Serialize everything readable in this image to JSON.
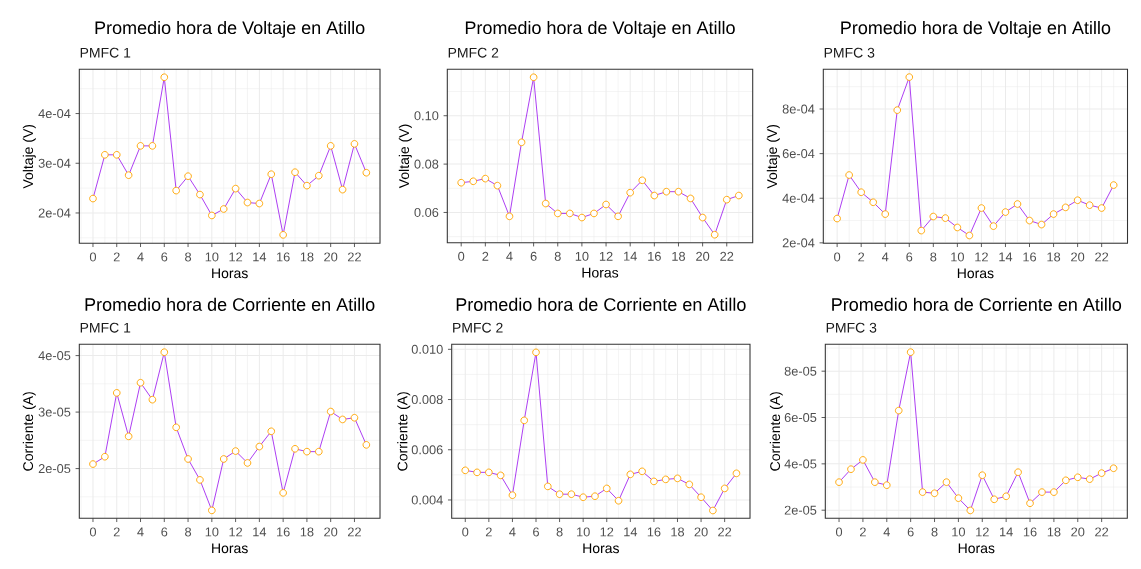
{
  "chart_data": [
    {
      "type": "line",
      "title": "Promedio hora de Voltaje en Atillo",
      "subtitle": "PMFC 1",
      "xlabel": "Horas",
      "ylabel": "Voltaje (V)",
      "x": [
        0,
        1,
        2,
        3,
        4,
        5,
        6,
        7,
        8,
        9,
        10,
        11,
        12,
        13,
        14,
        15,
        16,
        17,
        18,
        19,
        20,
        21,
        22,
        23
      ],
      "series": [
        {
          "color": "#a020f0",
          "colors": [
            "#ffa500",
            "#ffa500",
            "#ffa500",
            "#ffa500",
            "#ffa500",
            "#ffa500",
            "#ffa500",
            "#ffa500",
            "#ffa500",
            "#ffa500",
            "#ffa500",
            "#ffa500",
            "#ffa500",
            "#ffa500",
            "#ffa500",
            "#ffa500",
            "#ffa500",
            "#ffa500",
            "#ffa500",
            "#ffa500",
            "#ffa500",
            "#ffa500",
            "#ffa500",
            "#ffa500"
          ],
          "values": [
            0.000229,
            0.000317,
            0.000317,
            0.000276,
            0.000335,
            0.000335,
            0.000473,
            0.000245,
            0.000274,
            0.000237,
            0.000195,
            0.000208,
            0.000249,
            0.000221,
            0.000219,
            0.000278,
            0.000156,
            0.000282,
            0.000255,
            0.000275,
            0.000335,
            0.000247,
            0.000339,
            0.000281
          ]
        }
      ],
      "xlim": [
        -1.15,
        24.15
      ],
      "xticks": [
        0,
        2,
        4,
        6,
        8,
        10,
        12,
        14,
        16,
        18,
        20,
        22
      ],
      "ylim": [
        0.000139,
        0.000489
      ],
      "yticks": [
        {
          "value": 0.0002,
          "label": "2e-04"
        },
        {
          "value": 0.0003,
          "label": "3e-04"
        },
        {
          "value": 0.0004,
          "label": "4e-04"
        }
      ],
      "grid": true,
      "marker": "circle",
      "line_style": "solid"
    },
    {
      "type": "line",
      "title": "Promedio hora de Voltaje en Atillo",
      "subtitle": "PMFC 2",
      "xlabel": "Horas",
      "ylabel": "Voltaje (V)",
      "x": [
        0,
        1,
        2,
        3,
        4,
        5,
        6,
        7,
        8,
        9,
        10,
        11,
        12,
        13,
        14,
        15,
        16,
        17,
        18,
        19,
        20,
        21,
        22,
        23
      ],
      "series": [
        {
          "color": "#a020f0",
          "colors": [
            "#ffa500",
            "#ffa500",
            "#ffa500",
            "#ffa500",
            "#ffa500",
            "#ffa500",
            "#ffa500",
            "#ffa500",
            "#ffa500",
            "#ffa500",
            "#ffa500",
            "#ffa500",
            "#ffa500",
            "#ffa500",
            "#ffa500",
            "#ffa500",
            "#ffa500",
            "#ffa500",
            "#ffa500",
            "#ffa500",
            "#ffa500",
            "#ffa500",
            "#ffa500",
            "#ffa500"
          ],
          "values": [
            0.0723,
            0.0729,
            0.074,
            0.0711,
            0.0584,
            0.089,
            0.1159,
            0.0637,
            0.0596,
            0.0596,
            0.0579,
            0.0596,
            0.0633,
            0.0584,
            0.0682,
            0.0733,
            0.067,
            0.0686,
            0.0686,
            0.0658,
            0.0579,
            0.0508,
            0.0653,
            0.067
          ]
        }
      ],
      "xlim": [
        -1.15,
        24.15
      ],
      "xticks": [
        0,
        2,
        4,
        6,
        8,
        10,
        12,
        14,
        16,
        18,
        20,
        22
      ],
      "ylim": [
        0.0475,
        0.1192
      ],
      "yticks": [
        0.06,
        0.08,
        {
          "value": 0.1,
          "label": "0.10"
        }
      ],
      "grid": true,
      "marker": "circle",
      "line_style": "solid"
    },
    {
      "type": "line",
      "title": "Promedio hora de Voltaje en Atillo",
      "subtitle": "PMFC 3",
      "xlabel": "Horas",
      "ylabel": "Voltaje (V)",
      "x": [
        0,
        1,
        2,
        3,
        4,
        5,
        6,
        7,
        8,
        9,
        10,
        11,
        12,
        13,
        14,
        15,
        16,
        17,
        18,
        19,
        20,
        21,
        22,
        23
      ],
      "series": [
        {
          "color": "#a020f0",
          "colors": [
            "#ffa500",
            "#ffa500",
            "#ffa500",
            "#ffa500",
            "#ffa500",
            "#ffa500",
            "#ffa500",
            "#ffa500",
            "#ffa500",
            "#ffa500",
            "#ffa500",
            "#ffa500",
            "#ffa500",
            "#ffa500",
            "#ffa500",
            "#ffa500",
            "#ffa500",
            "#ffa500",
            "#ffa500",
            "#ffa500",
            "#ffa500",
            "#ffa500",
            "#ffa500",
            "#ffa500"
          ],
          "values": [
            0.000309,
            0.000504,
            0.000427,
            0.000382,
            0.000329,
            0.000795,
            0.000943,
            0.000255,
            0.000318,
            0.000311,
            0.000269,
            0.000233,
            0.000356,
            0.000275,
            0.000338,
            0.000374,
            0.0003,
            0.000282,
            0.000329,
            0.000359,
            0.000391,
            0.000369,
            0.000356,
            0.000459
          ]
        }
      ],
      "xlim": [
        -1.15,
        24.15
      ],
      "xticks": [
        0,
        2,
        4,
        6,
        8,
        10,
        12,
        14,
        16,
        18,
        20,
        22
      ],
      "ylim": [
        0.000198,
        0.000978
      ],
      "yticks": [
        {
          "value": 0.0002,
          "label": "2e-04"
        },
        {
          "value": 0.0004,
          "label": "4e-04"
        },
        {
          "value": 0.0006,
          "label": "6e-04"
        },
        {
          "value": 0.0008,
          "label": "8e-04"
        }
      ],
      "grid": true,
      "marker": "circle",
      "line_style": "solid"
    },
    {
      "type": "line",
      "title": "Promedio hora de Corriente en Atillo",
      "subtitle": "PMFC 1",
      "xlabel": "Horas",
      "ylabel": "Corriente (A)",
      "x": [
        0,
        1,
        2,
        3,
        4,
        5,
        6,
        7,
        8,
        9,
        10,
        11,
        12,
        13,
        14,
        15,
        16,
        17,
        18,
        19,
        20,
        21,
        22,
        23
      ],
      "series": [
        {
          "color": "#a020f0",
          "colors": [
            "#ffa500",
            "#ffa500",
            "#ffa500",
            "#ffa500",
            "#ffa500",
            "#ffa500",
            "#ffa500",
            "#ffa500",
            "#ffa500",
            "#ffa500",
            "#ffa500",
            "#ffa500",
            "#ffa500",
            "#ffa500",
            "#ffa500",
            "#ffa500",
            "#ffa500",
            "#ffa500",
            "#ffa500",
            "#ffa500",
            "#ffa500",
            "#ffa500",
            "#ffa500",
            "#ffa500"
          ],
          "values": [
            2.08e-05,
            2.21e-05,
            3.34e-05,
            2.57e-05,
            3.52e-05,
            3.22e-05,
            4.06e-05,
            2.73e-05,
            2.17e-05,
            1.8e-05,
            1.26e-05,
            2.17e-05,
            2.31e-05,
            2.1e-05,
            2.39e-05,
            2.66e-05,
            1.57e-05,
            2.35e-05,
            2.3e-05,
            2.3e-05,
            3.01e-05,
            2.87e-05,
            2.9e-05,
            2.42e-05
          ]
        }
      ],
      "xlim": [
        -1.15,
        24.15
      ],
      "xticks": [
        0,
        2,
        4,
        6,
        8,
        10,
        12,
        14,
        16,
        18,
        20,
        22
      ],
      "ylim": [
        1.12e-05,
        4.2e-05
      ],
      "yticks": [
        {
          "value": 2e-05,
          "label": "2e-05"
        },
        {
          "value": 3e-05,
          "label": "3e-05"
        },
        {
          "value": 4e-05,
          "label": "4e-05"
        }
      ],
      "grid": true,
      "marker": "circle",
      "line_style": "solid"
    },
    {
      "type": "line",
      "title": "Promedio hora de Corriente en Atillo",
      "subtitle": "PMFC 2",
      "xlabel": "Horas",
      "ylabel": "Corriente (A)",
      "x": [
        0,
        1,
        2,
        3,
        4,
        5,
        6,
        7,
        8,
        9,
        10,
        11,
        12,
        13,
        14,
        15,
        16,
        17,
        18,
        19,
        20,
        21,
        22,
        23
      ],
      "series": [
        {
          "color": "#a020f0",
          "colors": [
            "#ffa500",
            "#ffa500",
            "#ffa500",
            "#ffa500",
            "#ffa500",
            "#ffa500",
            "#ffa500",
            "#ffa500",
            "#ffa500",
            "#ffa500",
            "#ffa500",
            "#ffa500",
            "#ffa500",
            "#ffa500",
            "#ffa500",
            "#ffa500",
            "#ffa500",
            "#ffa500",
            "#ffa500",
            "#ffa500",
            "#ffa500",
            "#ffa500",
            "#ffa500",
            "#ffa500"
          ],
          "values": [
            0.00518,
            0.0051,
            0.0051,
            0.00498,
            0.00419,
            0.00717,
            0.00988,
            0.00454,
            0.00423,
            0.00423,
            0.00411,
            0.00415,
            0.00446,
            0.00397,
            0.00502,
            0.00514,
            0.00474,
            0.00482,
            0.00486,
            0.00462,
            0.00411,
            0.00358,
            0.00446,
            0.00506
          ]
        }
      ],
      "xlim": [
        -1.15,
        24.15
      ],
      "xticks": [
        0,
        2,
        4,
        6,
        8,
        10,
        12,
        14,
        16,
        18,
        20,
        22
      ],
      "ylim": [
        0.00327,
        0.0102
      ],
      "yticks": [
        0.004,
        0.006,
        0.008,
        {
          "value": 0.01,
          "label": "0.010"
        }
      ],
      "grid": true,
      "marker": "circle",
      "line_style": "solid"
    },
    {
      "type": "line",
      "title": "Promedio hora de Corriente en Atillo",
      "subtitle": "PMFC 3",
      "xlabel": "Horas",
      "ylabel": "Corriente (A)",
      "x": [
        0,
        1,
        2,
        3,
        4,
        5,
        6,
        7,
        8,
        9,
        10,
        11,
        12,
        13,
        14,
        15,
        16,
        17,
        18,
        19,
        20,
        21,
        22,
        23
      ],
      "series": [
        {
          "color": "#a020f0",
          "colors": [
            "#ffa500",
            "#ffa500",
            "#ffa500",
            "#ffa500",
            "#ffa500",
            "#ffa500",
            "#ffa500",
            "#ffa500",
            "#ffa500",
            "#ffa500",
            "#ffa500",
            "#ffa500",
            "#ffa500",
            "#ffa500",
            "#ffa500",
            "#ffa500",
            "#ffa500",
            "#ffa500",
            "#ffa500",
            "#ffa500",
            "#ffa500",
            "#ffa500",
            "#ffa500",
            "#ffa500"
          ],
          "values": [
            3.21e-05,
            3.77e-05,
            4.17e-05,
            3.21e-05,
            3.08e-05,
            6.3e-05,
            8.82e-05,
            2.78e-05,
            2.73e-05,
            3.21e-05,
            2.52e-05,
            1.99e-05,
            3.51e-05,
            2.47e-05,
            2.6e-05,
            3.64e-05,
            2.3e-05,
            2.78e-05,
            2.78e-05,
            3.29e-05,
            3.42e-05,
            3.34e-05,
            3.6e-05,
            3.81e-05
          ]
        }
      ],
      "xlim": [
        -1.15,
        24.15
      ],
      "xticks": [
        0,
        2,
        4,
        6,
        8,
        10,
        12,
        14,
        16,
        18,
        20,
        22
      ],
      "ylim": [
        1.65e-05,
        9.16e-05
      ],
      "yticks": [
        {
          "value": 2e-05,
          "label": "2e-05"
        },
        {
          "value": 4e-05,
          "label": "4e-05"
        },
        {
          "value": 6e-05,
          "label": "6e-05"
        },
        {
          "value": 8e-05,
          "label": "8e-05"
        }
      ],
      "grid": true,
      "marker": "circle",
      "line_style": "solid"
    }
  ]
}
